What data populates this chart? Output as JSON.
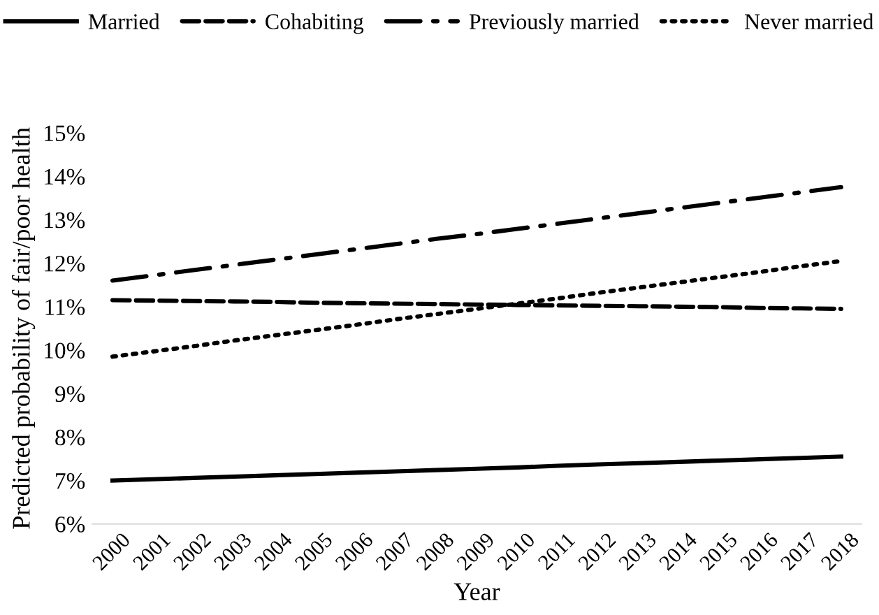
{
  "chart_data": {
    "type": "line",
    "xlabel": "Year",
    "ylabel": "Predicted probability of fair/poor health",
    "categories": [
      "2000",
      "2001",
      "2002",
      "2003",
      "2004",
      "2005",
      "2006",
      "2007",
      "2008",
      "2009",
      "2010",
      "2011",
      "2012",
      "2013",
      "2014",
      "2015",
      "2016",
      "2017",
      "2018"
    ],
    "ylim": [
      6,
      15
    ],
    "yticks": [
      {
        "value": 6,
        "label": "6%"
      },
      {
        "value": 7,
        "label": "7%"
      },
      {
        "value": 8,
        "label": "8%"
      },
      {
        "value": 9,
        "label": "9%"
      },
      {
        "value": 10,
        "label": "10%"
      },
      {
        "value": 11,
        "label": "11%"
      },
      {
        "value": 12,
        "label": "12%"
      },
      {
        "value": 13,
        "label": "13%"
      },
      {
        "value": 14,
        "label": "14%"
      },
      {
        "value": 15,
        "label": "15%"
      }
    ],
    "legend": "top",
    "grid": false,
    "series": [
      {
        "name": "Married",
        "color": "#000000",
        "line_style": "solid",
        "values": [
          7.0,
          7.03,
          7.06,
          7.09,
          7.12,
          7.15,
          7.18,
          7.21,
          7.24,
          7.27,
          7.3,
          7.34,
          7.37,
          7.4,
          7.43,
          7.46,
          7.49,
          7.52,
          7.55
        ]
      },
      {
        "name": "Cohabiting",
        "color": "#000000",
        "line_style": "dashed",
        "values": [
          11.15,
          11.14,
          11.13,
          11.12,
          11.11,
          11.09,
          11.08,
          11.07,
          11.06,
          11.05,
          11.04,
          11.03,
          11.02,
          11.01,
          11.0,
          10.99,
          10.97,
          10.96,
          10.95
        ]
      },
      {
        "name": "Previously married",
        "color": "#000000",
        "line_style": "dashdot",
        "values": [
          11.6,
          11.72,
          11.84,
          11.96,
          12.08,
          12.2,
          12.32,
          12.44,
          12.56,
          12.67,
          12.79,
          12.91,
          13.03,
          13.15,
          13.27,
          13.39,
          13.51,
          13.63,
          13.75
        ]
      },
      {
        "name": "Never married",
        "color": "#000000",
        "line_style": "dotted",
        "values": [
          9.85,
          9.97,
          10.09,
          10.22,
          10.34,
          10.46,
          10.58,
          10.71,
          10.83,
          10.95,
          11.07,
          11.19,
          11.32,
          11.44,
          11.56,
          11.68,
          11.8,
          11.93,
          12.05
        ]
      }
    ]
  }
}
